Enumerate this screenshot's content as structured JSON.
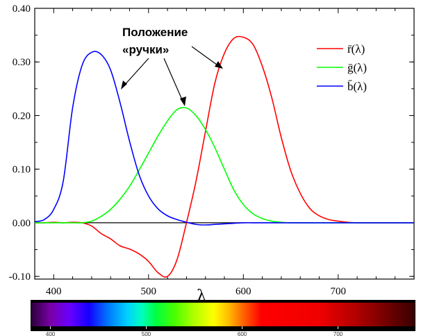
{
  "chart_data": {
    "type": "line",
    "xlabel": "λ",
    "ylabel": "",
    "xlim": [
      380,
      780
    ],
    "ylim": [
      -0.105,
      0.4
    ],
    "x_ticks": [
      400,
      500,
      600,
      700
    ],
    "y_ticks": [
      {
        "value": -0.1,
        "label": "-0.10"
      },
      {
        "value": 0.0,
        "label": "0.00"
      },
      {
        "value": 0.1,
        "label": "0.10"
      },
      {
        "value": 0.2,
        "label": "0.20"
      },
      {
        "value": 0.3,
        "label": "0.30"
      },
      {
        "value": 0.4,
        "label": "0.40"
      }
    ],
    "zero_line": true,
    "legend_position": "top-right",
    "annotation": {
      "lines": [
        "Положение",
        "«ручки»"
      ],
      "arrows_to": [
        "b",
        "g",
        "r"
      ]
    },
    "x": [
      380,
      390,
      400,
      410,
      420,
      430,
      440,
      450,
      460,
      470,
      480,
      490,
      500,
      510,
      520,
      530,
      540,
      550,
      560,
      570,
      580,
      590,
      600,
      610,
      620,
      630,
      640,
      650,
      660,
      670,
      680,
      690,
      700,
      710,
      720,
      730,
      740,
      750,
      760,
      770,
      780
    ],
    "series": [
      {
        "name": "r",
        "label": "r̄(λ)",
        "color": "#ff0000",
        "values": [
          0.0,
          0.0,
          0.001,
          0.0,
          0.001,
          0.0,
          -0.006,
          -0.02,
          -0.03,
          -0.043,
          -0.049,
          -0.058,
          -0.072,
          -0.093,
          -0.1,
          -0.069,
          0.0,
          0.077,
          0.17,
          0.261,
          0.316,
          0.344,
          0.346,
          0.333,
          0.292,
          0.233,
          0.159,
          0.097,
          0.055,
          0.027,
          0.013,
          0.006,
          0.003,
          0.001,
          0.0,
          0.0,
          0.0,
          0.0,
          0.0,
          0.0,
          0.0
        ]
      },
      {
        "name": "g",
        "label": "ḡ(λ)",
        "color": "#00ff00",
        "values": [
          0.0,
          0.0,
          0.0,
          0.0,
          0.0,
          0.0,
          0.003,
          0.012,
          0.025,
          0.044,
          0.068,
          0.098,
          0.13,
          0.162,
          0.19,
          0.211,
          0.214,
          0.2,
          0.174,
          0.14,
          0.1,
          0.061,
          0.034,
          0.017,
          0.008,
          0.003,
          0.001,
          0.0,
          0.0,
          0.0,
          0.0,
          0.0,
          0.0,
          0.0,
          0.0,
          0.0,
          0.0,
          0.0,
          0.0,
          0.0,
          0.0
        ]
      },
      {
        "name": "b",
        "label": "b̄(λ)",
        "color": "#0000ff",
        "values": [
          0.002,
          0.006,
          0.025,
          0.077,
          0.215,
          0.294,
          0.318,
          0.314,
          0.285,
          0.224,
          0.152,
          0.09,
          0.05,
          0.026,
          0.013,
          0.006,
          0.001,
          -0.003,
          -0.004,
          -0.003,
          -0.002,
          -0.001,
          0.0,
          0.0,
          0.0,
          0.0,
          0.0,
          0.0,
          0.0,
          0.0,
          0.0,
          0.0,
          0.0,
          0.0,
          0.0,
          0.0,
          0.0,
          0.0,
          0.0,
          0.0,
          0.0
        ]
      }
    ],
    "spectrum_bar": {
      "ticks": [
        400,
        500,
        600,
        700
      ],
      "stops": [
        {
          "nm": 380,
          "color": "#2a0038"
        },
        {
          "nm": 400,
          "color": "#7b00a8"
        },
        {
          "nm": 420,
          "color": "#6a00ff"
        },
        {
          "nm": 440,
          "color": "#1500ff"
        },
        {
          "nm": 460,
          "color": "#0077ff"
        },
        {
          "nm": 480,
          "color": "#00d0ff"
        },
        {
          "nm": 495,
          "color": "#00ffc0"
        },
        {
          "nm": 510,
          "color": "#00ff40"
        },
        {
          "nm": 530,
          "color": "#4cff00"
        },
        {
          "nm": 550,
          "color": "#b0ff00"
        },
        {
          "nm": 570,
          "color": "#ffff00"
        },
        {
          "nm": 585,
          "color": "#ffc000"
        },
        {
          "nm": 600,
          "color": "#ff6a00"
        },
        {
          "nm": 620,
          "color": "#ff0000"
        },
        {
          "nm": 680,
          "color": "#f00000"
        },
        {
          "nm": 720,
          "color": "#b00000"
        },
        {
          "nm": 760,
          "color": "#600000"
        },
        {
          "nm": 780,
          "color": "#3a0000"
        }
      ]
    }
  }
}
